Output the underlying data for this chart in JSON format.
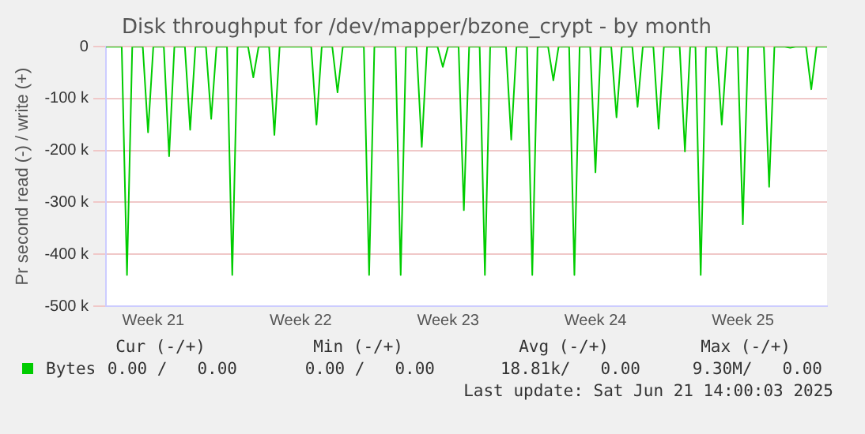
{
  "chart_data": {
    "type": "line",
    "title": "Disk throughput for /dev/mapper/bzone_crypt - by month",
    "ylabel": "Pr second read (-) / write (+)",
    "categories": [
      null,
      null,
      null,
      null,
      null,
      null,
      null,
      null,
      null,
      "Week 21",
      null,
      null,
      null,
      null,
      null,
      null,
      null,
      null,
      null,
      null,
      null,
      null,
      null,
      null,
      null,
      null,
      null,
      null,
      null,
      null,
      null,
      null,
      null,
      null,
      null,
      null,
      null,
      "Week 22",
      null,
      null,
      null,
      null,
      null,
      null,
      null,
      null,
      null,
      null,
      null,
      null,
      null,
      null,
      null,
      null,
      null,
      null,
      null,
      null,
      null,
      null,
      null,
      null,
      null,
      null,
      null,
      "Week 23",
      null,
      null,
      null,
      null,
      null,
      null,
      null,
      null,
      null,
      null,
      null,
      null,
      null,
      null,
      null,
      null,
      null,
      null,
      null,
      null,
      null,
      null,
      null,
      null,
      null,
      null,
      null,
      "Week 24",
      null,
      null,
      null,
      null,
      null,
      null,
      null,
      null,
      null,
      null,
      null,
      null,
      null,
      null,
      null,
      null,
      null,
      null,
      null,
      null,
      null,
      null,
      null,
      null,
      null,
      null,
      null,
      "Week 25",
      null,
      null,
      null,
      null,
      null,
      null,
      null,
      null,
      null,
      null,
      null,
      null,
      null,
      null,
      null,
      null
    ],
    "series": [
      {
        "name": "Bytes",
        "color": "#00cc00",
        "values": [
          0,
          0,
          0,
          0,
          -440000,
          0,
          0,
          0,
          -165000,
          0,
          0,
          0,
          -211000,
          0,
          0,
          0,
          -160000,
          0,
          0,
          0,
          -139000,
          0,
          0,
          0,
          -440000,
          0,
          0,
          0,
          -59000,
          0,
          0,
          0,
          -170000,
          0,
          0,
          0,
          0,
          0,
          0,
          0,
          -150000,
          0,
          0,
          0,
          -88000,
          0,
          0,
          0,
          0,
          0,
          -440000,
          0,
          0,
          0,
          0,
          0,
          -440000,
          0,
          0,
          0,
          -193000,
          0,
          0,
          0,
          -39000,
          0,
          0,
          0,
          -315000,
          0,
          0,
          0,
          -440000,
          0,
          0,
          0,
          0,
          -179000,
          0,
          0,
          0,
          -440000,
          0,
          0,
          0,
          -65000,
          0,
          0,
          0,
          -440000,
          0,
          0,
          0,
          -242000,
          0,
          0,
          0,
          -136000,
          0,
          0,
          0,
          -116000,
          0,
          0,
          0,
          -158000,
          0,
          0,
          0,
          0,
          -202000,
          0,
          0,
          -440000,
          0,
          0,
          0,
          -150000,
          0,
          0,
          0,
          -342000,
          0,
          0,
          0,
          0,
          -270000,
          0,
          0,
          0,
          -2000,
          0,
          0,
          0,
          -82000,
          0,
          0,
          0
        ]
      }
    ],
    "ylim": [
      -500000,
      0
    ],
    "yticks": [
      {
        "value": -500000,
        "label": "-500 k"
      },
      {
        "value": -400000,
        "label": "-400 k"
      },
      {
        "value": -300000,
        "label": "-300 k"
      },
      {
        "value": -200000,
        "label": "-200 k"
      },
      {
        "value": -100000,
        "label": "-100 k"
      },
      0
    ],
    "grid": "y",
    "legend": "bottom",
    "marker": "none",
    "line_style": "solid",
    "annotations": [
      "Cur (-/+)",
      "Min (-/+)",
      "Avg (-/+)",
      "Max (-/+)",
      "0.00 /   0.00",
      "0.00 /   0.00",
      "18.81k/   0.00",
      "9.30M/   0.00",
      "Last update: Sat Jun 21 14:00:03 2025"
    ]
  }
}
